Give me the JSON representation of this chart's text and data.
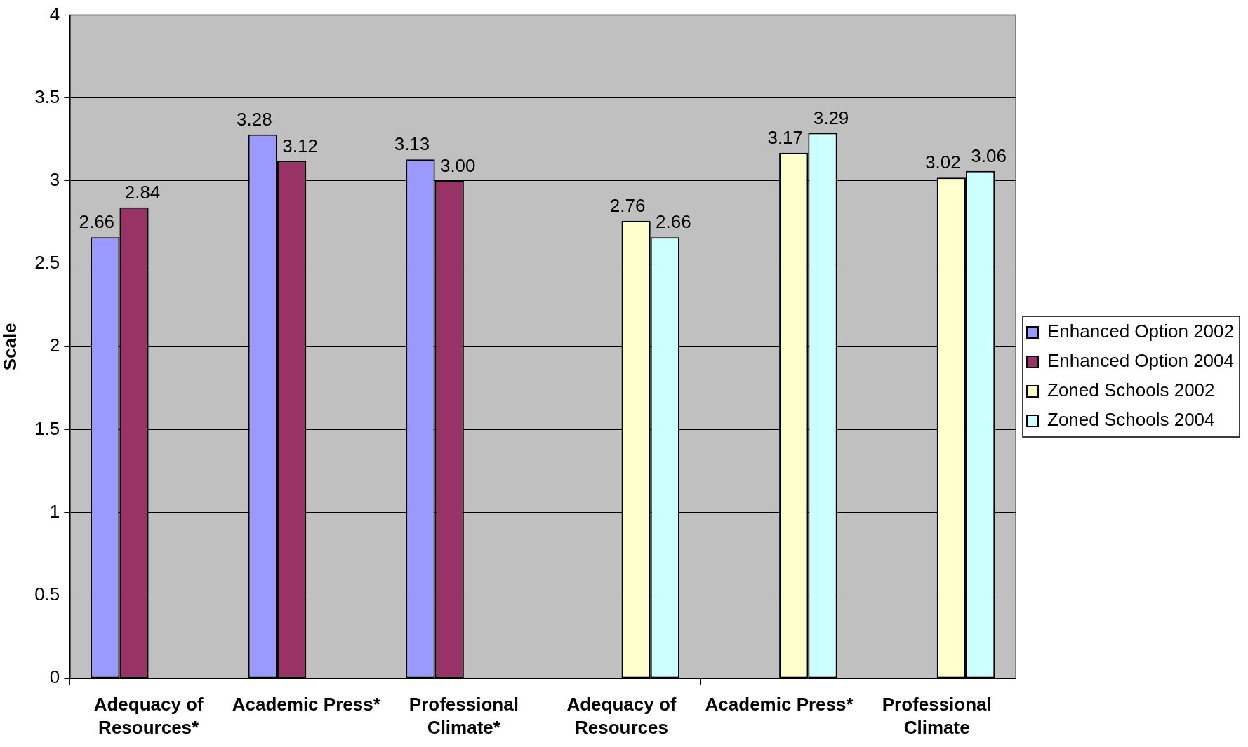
{
  "chart_data": {
    "type": "bar",
    "ylabel": "Scale",
    "categories": [
      "Adequacy of Resources*",
      "Academic Press*",
      "Professional Climate*",
      "Adequacy of Resources",
      "Academic Press*",
      "Professional Climate"
    ],
    "series": [
      {
        "name": "Enhanced Option 2002",
        "color": "#9999ff",
        "values": [
          2.66,
          3.28,
          3.13,
          null,
          null,
          null
        ],
        "value_labels": [
          "2.66",
          "3.28",
          "3.13",
          null,
          null,
          null
        ]
      },
      {
        "name": "Enhanced Option 2004",
        "color": "#993366",
        "values": [
          2.84,
          3.12,
          3.0,
          null,
          null,
          null
        ],
        "value_labels": [
          "2.84",
          "3.12",
          "3.00",
          null,
          null,
          null
        ]
      },
      {
        "name": "Zoned Schools 2002",
        "color": "#ffffcc",
        "values": [
          null,
          null,
          null,
          2.76,
          3.17,
          3.02
        ],
        "value_labels": [
          null,
          null,
          null,
          "2.76",
          "3.17",
          "3.02"
        ]
      },
      {
        "name": "Zoned Schools 2004",
        "color": "#ccffff",
        "values": [
          null,
          null,
          null,
          2.66,
          3.29,
          3.06
        ],
        "value_labels": [
          null,
          null,
          null,
          "2.66",
          "3.29",
          "3.06"
        ]
      }
    ],
    "ylim": [
      0,
      4
    ],
    "yticks": [
      0,
      0.5,
      1,
      1.5,
      2,
      2.5,
      3,
      3.5,
      4
    ],
    "grid": "y",
    "legend": "right"
  }
}
